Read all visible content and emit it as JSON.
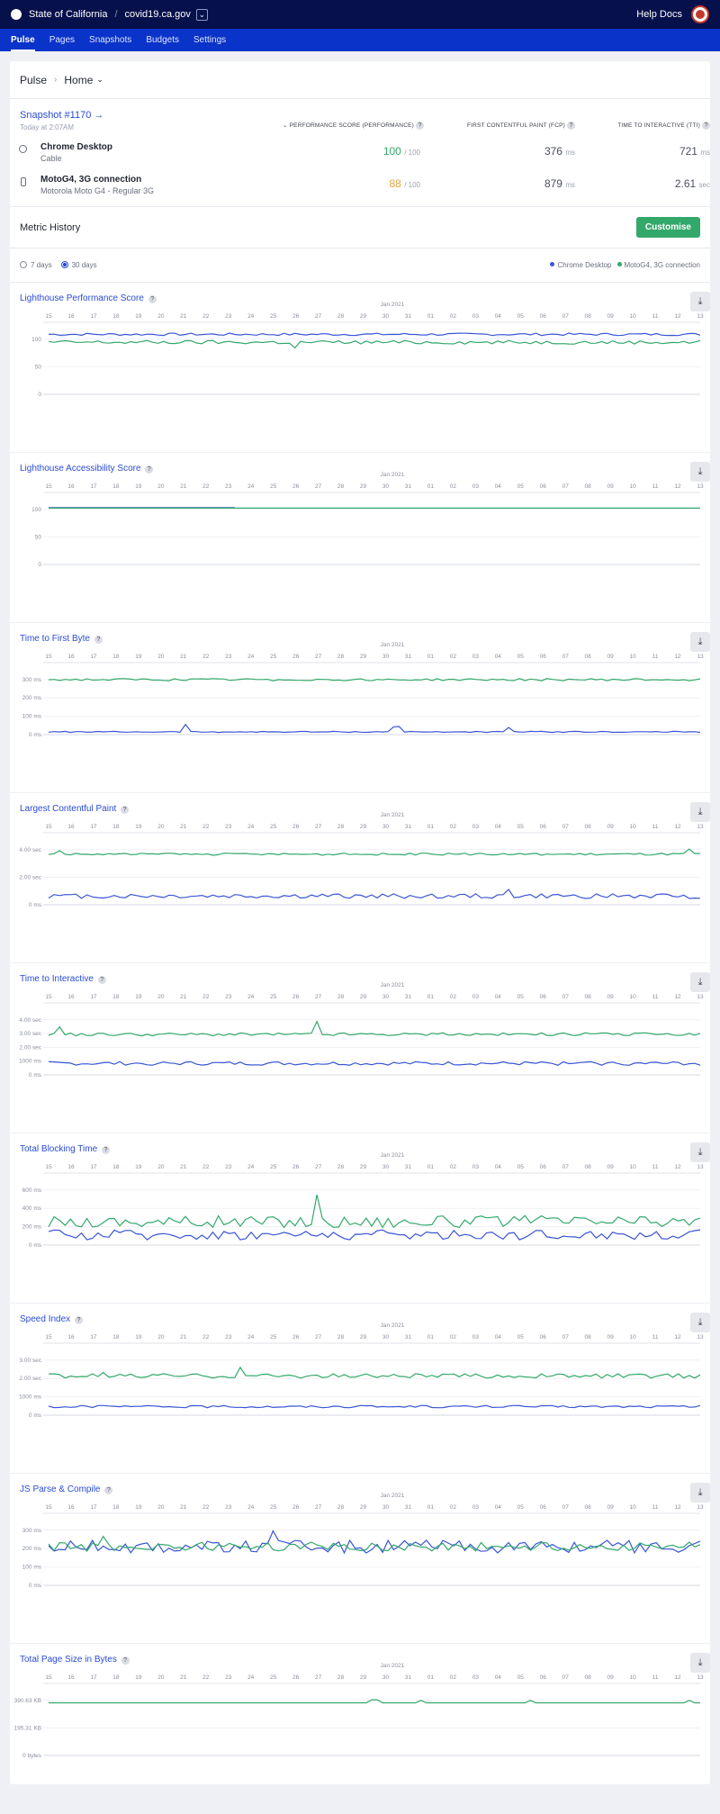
{
  "topbar": {
    "org": "State of California",
    "site": "covid19.ca.gov",
    "help": "Help Docs"
  },
  "nav": [
    {
      "label": "Pulse",
      "active": true
    },
    {
      "label": "Pages",
      "active": false
    },
    {
      "label": "Snapshots",
      "active": false
    },
    {
      "label": "Budgets",
      "active": false
    },
    {
      "label": "Settings",
      "active": false
    }
  ],
  "breadcrumb": {
    "root": "Pulse",
    "current": "Home"
  },
  "snapshot": {
    "link": "Snapshot #1170 →",
    "time": "Today at 2:07AM",
    "headers": {
      "performance": "PERFORMANCE SCORE (PERFORMANCE)",
      "fcp": "FIRST CONTENTFUL PAINT (FCP)",
      "tti": "TIME TO INTERACTIVE (TTI)"
    },
    "rows": [
      {
        "name": "Chrome Desktop",
        "sub": "Cable",
        "score": "100",
        "score_max": "/ 100",
        "score_color": "#33a86b",
        "fcp": "376",
        "fcp_unit": "ms",
        "tti": "721",
        "tti_unit": "ms"
      },
      {
        "name": "MotoG4, 3G connection",
        "sub": "Motorola Moto G4 - Regular 3G",
        "score": "88",
        "score_max": "/ 100",
        "score_color": "#e7a53b",
        "fcp": "879",
        "fcp_unit": "ms",
        "tti": "2.61",
        "tti_unit": "sec"
      }
    ]
  },
  "metric_history": {
    "title": "Metric History",
    "customise": "Customise"
  },
  "filters": {
    "opt7": "7 days",
    "opt30": "30 days",
    "legend_a": "Chrome Desktop",
    "legend_b": "MotoG4, 3G connection"
  },
  "colors": {
    "chrome": "#3a55d6",
    "moto": "#33a86b"
  },
  "chart_data": [
    {
      "type": "line",
      "title": "Lighthouse Performance Score",
      "month": "Jan 2021",
      "ticks": [
        "0",
        "50",
        "100"
      ],
      "ymax": 100,
      "categories": [
        "15",
        "16",
        "17",
        "18",
        "19",
        "20",
        "21",
        "22",
        "23",
        "24",
        "25",
        "26",
        "27",
        "28",
        "29",
        "30",
        "31",
        "01",
        "02",
        "03",
        "04",
        "05",
        "06",
        "07",
        "08",
        "09",
        "10",
        "11",
        "12",
        "13"
      ],
      "series": [
        {
          "name": "Chrome Desktop",
          "color": "#3a55d6",
          "base": 98,
          "noise": 2,
          "spikes": []
        },
        {
          "name": "MotoG4, 3G connection",
          "color": "#33a86b",
          "base": 85,
          "noise": 3,
          "spikes": [
            [
              11,
              -10
            ]
          ]
        }
      ]
    },
    {
      "type": "line",
      "title": "Lighthouse Accessibility Score",
      "month": "Jan 2021",
      "ticks": [
        "0",
        "50",
        "100"
      ],
      "ymax": 100,
      "categories": [
        "15",
        "16",
        "17",
        "18",
        "19",
        "20",
        "21",
        "22",
        "23",
        "24",
        "25",
        "26",
        "27",
        "28",
        "29",
        "30",
        "31",
        "01",
        "02",
        "03",
        "04",
        "05",
        "06",
        "07",
        "08",
        "09",
        "10",
        "11",
        "12",
        "13"
      ],
      "series": [
        {
          "name": "Chrome Desktop",
          "color": "#3a55d6",
          "base": 93,
          "noise": 0,
          "spikes": [],
          "until": 8.5
        },
        {
          "name": "MotoG4, 3G connection",
          "color": "#33a86b",
          "base": 92,
          "noise": 0,
          "spikes": []
        }
      ]
    },
    {
      "type": "line",
      "title": "Time to First Byte",
      "month": "Jan 2021",
      "ticks": [
        "0 ms",
        "100 ms",
        "200 ms",
        "300 ms"
      ],
      "ymax": 340,
      "categories": [
        "15",
        "16",
        "17",
        "18",
        "19",
        "20",
        "21",
        "22",
        "23",
        "24",
        "25",
        "26",
        "27",
        "28",
        "29",
        "30",
        "31",
        "01",
        "02",
        "03",
        "04",
        "05",
        "06",
        "07",
        "08",
        "09",
        "10",
        "11",
        "12",
        "13"
      ],
      "series": [
        {
          "name": "Chrome Desktop",
          "color": "#3a55d6",
          "base": 15,
          "noise": 3,
          "spikes": [
            [
              6,
              40
            ],
            [
              15.5,
              30
            ],
            [
              20.5,
              25
            ]
          ]
        },
        {
          "name": "MotoG4, 3G connection",
          "color": "#33a86b",
          "base": 305,
          "noise": 6,
          "spikes": []
        }
      ]
    },
    {
      "type": "line",
      "title": "Largest Contentful Paint",
      "month": "Jan 2021",
      "ticks": [
        "0 ms",
        "2.00 sec",
        "4.00 sec"
      ],
      "ymax": 4.6,
      "categories": [
        "15",
        "16",
        "17",
        "18",
        "19",
        "20",
        "21",
        "22",
        "23",
        "24",
        "25",
        "26",
        "27",
        "28",
        "29",
        "30",
        "31",
        "01",
        "02",
        "03",
        "04",
        "05",
        "06",
        "07",
        "08",
        "09",
        "10",
        "11",
        "12",
        "13"
      ],
      "series": [
        {
          "name": "Chrome Desktop",
          "color": "#3a55d6",
          "base": 0.65,
          "noise": 0.18,
          "spikes": [
            [
              20.5,
              0.5
            ]
          ]
        },
        {
          "name": "MotoG4, 3G connection",
          "color": "#33a86b",
          "base": 3.8,
          "noise": 0.08,
          "spikes": [
            [
              0.5,
              0.3
            ],
            [
              28.5,
              0.4
            ]
          ]
        }
      ]
    },
    {
      "type": "line",
      "title": "Time to Interactive",
      "month": "Jan 2021",
      "ticks": [
        "0 ms",
        "1000 ms",
        "2.00 sec",
        "3.00 sec",
        "4.00 sec"
      ],
      "ymax": 4,
      "categories": [
        "15",
        "16",
        "17",
        "18",
        "19",
        "20",
        "21",
        "22",
        "23",
        "24",
        "25",
        "26",
        "27",
        "28",
        "29",
        "30",
        "31",
        "01",
        "02",
        "03",
        "04",
        "05",
        "06",
        "07",
        "08",
        "09",
        "10",
        "11",
        "12",
        "13"
      ],
      "series": [
        {
          "name": "Chrome Desktop",
          "color": "#3a55d6",
          "base": 0.75,
          "noise": 0.12,
          "spikes": []
        },
        {
          "name": "MotoG4, 3G connection",
          "color": "#33a86b",
          "base": 2.65,
          "noise": 0.1,
          "spikes": [
            [
              0.5,
              0.5
            ],
            [
              12,
              0.8
            ]
          ]
        }
      ]
    },
    {
      "type": "line",
      "title": "Total Blocking Time",
      "month": "Jan 2021",
      "ticks": [
        "0 ms",
        "200 ms",
        "400 ms",
        "600 ms"
      ],
      "ymax": 600,
      "categories": [
        "15",
        "16",
        "17",
        "18",
        "19",
        "20",
        "21",
        "22",
        "23",
        "24",
        "25",
        "26",
        "27",
        "28",
        "29",
        "30",
        "31",
        "01",
        "02",
        "03",
        "04",
        "05",
        "06",
        "07",
        "08",
        "09",
        "10",
        "11",
        "12",
        "13"
      ],
      "series": [
        {
          "name": "Chrome Desktop",
          "color": "#3a55d6",
          "base": 100,
          "noise": 50,
          "spikes": []
        },
        {
          "name": "MotoG4, 3G connection",
          "color": "#33a86b",
          "base": 230,
          "noise": 60,
          "spikes": [
            [
              12,
              240
            ]
          ]
        }
      ]
    },
    {
      "type": "line",
      "title": "Speed Index",
      "month": "Jan 2021",
      "ticks": [
        "0 ms",
        "1000 ms",
        "2.00 sec",
        "3.00 sec"
      ],
      "ymax": 3.2,
      "categories": [
        "15",
        "16",
        "17",
        "18",
        "19",
        "20",
        "21",
        "22",
        "23",
        "24",
        "25",
        "26",
        "27",
        "28",
        "29",
        "30",
        "31",
        "01",
        "02",
        "03",
        "04",
        "05",
        "06",
        "07",
        "08",
        "09",
        "10",
        "11",
        "12",
        "13"
      ],
      "series": [
        {
          "name": "Chrome Desktop",
          "color": "#3a55d6",
          "base": 0.45,
          "noise": 0.06,
          "spikes": []
        },
        {
          "name": "MotoG4, 3G connection",
          "color": "#33a86b",
          "base": 2.05,
          "noise": 0.12,
          "spikes": [
            [
              8.5,
              0.5
            ],
            [
              2.5,
              0.3
            ]
          ]
        }
      ]
    },
    {
      "type": "line",
      "title": "JS Parse & Compile",
      "month": "Jan 2021",
      "ticks": [
        "0 ms",
        "100 ms",
        "200 ms",
        "300 ms"
      ],
      "ymax": 340,
      "categories": [
        "15",
        "16",
        "17",
        "18",
        "19",
        "20",
        "21",
        "22",
        "23",
        "24",
        "25",
        "26",
        "27",
        "28",
        "29",
        "30",
        "31",
        "01",
        "02",
        "03",
        "04",
        "05",
        "06",
        "07",
        "08",
        "09",
        "10",
        "11",
        "12",
        "13"
      ],
      "series": [
        {
          "name": "Chrome Desktop",
          "color": "#3a55d6",
          "base": 215,
          "noise": 35,
          "spikes": [
            [
              10,
              70
            ]
          ]
        },
        {
          "name": "MotoG4, 3G connection",
          "color": "#33a86b",
          "base": 215,
          "noise": 25,
          "spikes": [
            [
              2.5,
              50
            ]
          ]
        }
      ]
    },
    {
      "type": "line",
      "title": "Total Page Size in Bytes",
      "month": "Jan 2021",
      "ticks": [
        "0 bytes",
        "195.31 KB",
        "390.63 KB"
      ],
      "ymax": 500,
      "categories": [
        "15",
        "16",
        "17",
        "18",
        "19",
        "20",
        "21",
        "22",
        "23",
        "24",
        "25",
        "26",
        "27",
        "28",
        "29",
        "30",
        "31",
        "01",
        "02",
        "03",
        "04",
        "05",
        "06",
        "07",
        "08",
        "09",
        "10",
        "11",
        "12",
        "13"
      ],
      "series": [
        {
          "name": "MotoG4, 3G connection",
          "color": "#33a86b",
          "base": 430,
          "noise": 0,
          "spikes": [
            [
              14.5,
              25
            ],
            [
              16.5,
              20
            ],
            [
              21.5,
              20
            ],
            [
              28.5,
              20
            ]
          ]
        }
      ]
    }
  ]
}
